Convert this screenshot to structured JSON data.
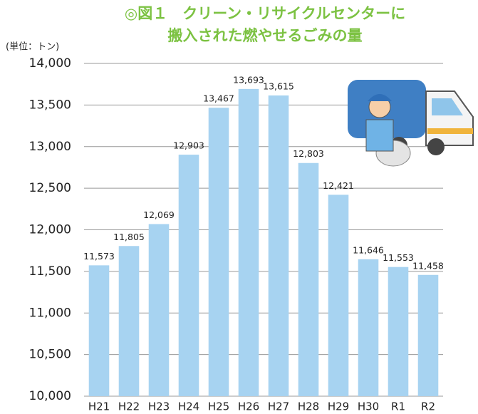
{
  "chart_data": {
    "type": "bar",
    "title": [
      "◎図１　クリーン・リサイクルセンターに",
      "搬入された燃やせるごみの量"
    ],
    "y_label": "(単位：トン)",
    "categories": [
      "H21",
      "H22",
      "H23",
      "H24",
      "H25",
      "H26",
      "H27",
      "H28",
      "H29",
      "H30",
      "R1",
      "R2"
    ],
    "values": [
      11573,
      11805,
      12069,
      12903,
      13467,
      13693,
      13615,
      12803,
      12421,
      11646,
      11553,
      11458
    ],
    "value_labels": [
      "11,573",
      "11,805",
      "12,069",
      "12,903",
      "13,467",
      "13,693",
      "13,615",
      "12,803",
      "12,421",
      "11,646",
      "11,553",
      "11,458"
    ],
    "color": "#a7d3f1",
    "ylim": [
      10000,
      14000
    ],
    "yticks": [
      {
        "value": 10000,
        "label": "10,000"
      },
      {
        "value": 10500,
        "label": "10,500"
      },
      {
        "value": 11000,
        "label": "11,000"
      },
      {
        "value": 11500,
        "label": "11,500"
      },
      {
        "value": 12000,
        "label": "12,000"
      },
      {
        "value": 12500,
        "label": "12,500"
      },
      {
        "value": 13000,
        "label": "13,000"
      },
      {
        "value": 13500,
        "label": "13,500"
      },
      {
        "value": 14000,
        "label": "14,000"
      }
    ],
    "grid": true
  }
}
